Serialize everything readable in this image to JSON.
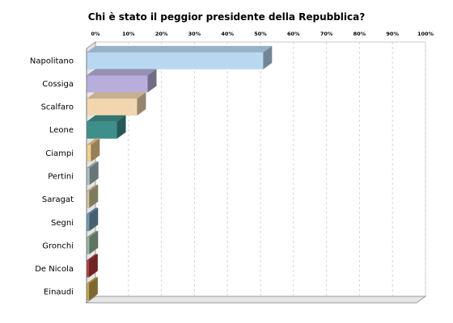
{
  "chart_data": {
    "type": "bar",
    "orientation": "horizontal",
    "title": "Chi è stato il peggior presidente della Repubblica?",
    "xlabel": "",
    "ylabel": "",
    "xlim": [
      0,
      100
    ],
    "x_ticks": [
      "0%",
      "10%",
      "20%",
      "30%",
      "40%",
      "50%",
      "60%",
      "70%",
      "80%",
      "90%",
      "100%"
    ],
    "grid": "vertical dashed",
    "legend": "none",
    "categories": [
      "Napolitano",
      "Cossiga",
      "Scalfaro",
      "Leone",
      "Ciampi",
      "Pertini",
      "Saragat",
      "Segni",
      "Gronchi",
      "De Nicola",
      "Einaudi"
    ],
    "values": [
      53.5,
      18.5,
      15.3,
      9.2,
      1.3,
      0.9,
      0.8,
      0.8,
      0.8,
      0.7,
      0.7
    ],
    "colors": [
      "#b8d8f0",
      "#b8aedb",
      "#f2d6b0",
      "#3e8f8a",
      "#f2cf8e",
      "#a9bfc2",
      "#cfc79a",
      "#6f9bb3",
      "#95bb9e",
      "#b33c3c",
      "#c9a84e"
    ]
  }
}
